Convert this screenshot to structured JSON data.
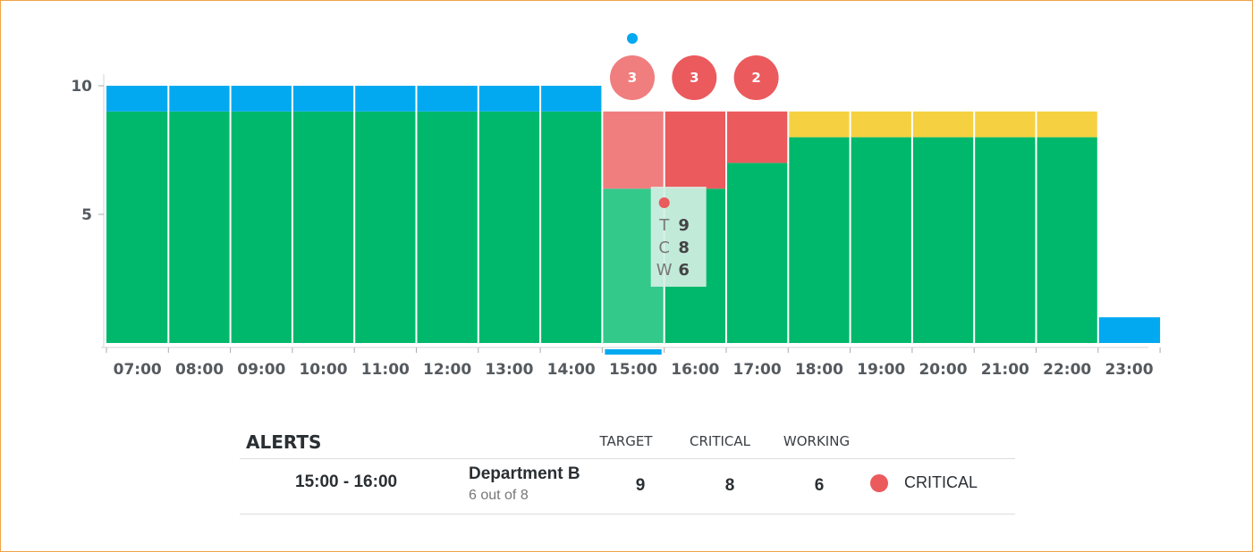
{
  "chart_data": {
    "type": "bar",
    "stacked": true,
    "categories": [
      "07:00",
      "08:00",
      "09:00",
      "10:00",
      "11:00",
      "12:00",
      "13:00",
      "14:00",
      "15:00",
      "16:00",
      "17:00",
      "18:00",
      "19:00",
      "20:00",
      "21:00",
      "22:00",
      "23:00"
    ],
    "series": [
      {
        "color": "#00b86b",
        "values": [
          9,
          9,
          9,
          9,
          9,
          9,
          9,
          9,
          6,
          6,
          7,
          8,
          8,
          8,
          8,
          8,
          0
        ]
      },
      {
        "color": "#f07e7e",
        "values": [
          0,
          0,
          0,
          0,
          0,
          0,
          0,
          0,
          3,
          0,
          0,
          0,
          0,
          0,
          0,
          0,
          0
        ]
      },
      {
        "color": "#eb5a5d",
        "values": [
          0,
          0,
          0,
          0,
          0,
          0,
          0,
          0,
          0,
          3,
          2,
          0,
          0,
          0,
          0,
          0,
          0
        ]
      },
      {
        "color": "#f5d142",
        "values": [
          0,
          0,
          0,
          0,
          0,
          0,
          0,
          0,
          0,
          0,
          0,
          1,
          1,
          1,
          1,
          1,
          0
        ]
      },
      {
        "color": "#03a9f0",
        "values": [
          1,
          1,
          1,
          1,
          1,
          1,
          1,
          1,
          0,
          0,
          0,
          0,
          0,
          0,
          0,
          0,
          1
        ]
      }
    ],
    "yticks": [
      5,
      10
    ],
    "ylim": [
      0,
      10.4
    ],
    "xlabel": "",
    "ylabel": "",
    "selected_category": "15:00",
    "bubbles": [
      {
        "category": "15:00",
        "label": "3",
        "color": "#f07e7e"
      },
      {
        "category": "16:00",
        "label": "3",
        "color": "#eb5a5d"
      },
      {
        "category": "17:00",
        "label": "2",
        "color": "#eb5a5d"
      }
    ],
    "marker_dot": {
      "category": "15:00",
      "color": "#03a9f0"
    },
    "tooltip": {
      "category": "15:00",
      "dot_color": "#eb5a5d",
      "rows": [
        {
          "key": "T",
          "value": "9"
        },
        {
          "key": "C",
          "value": "8"
        },
        {
          "key": "W",
          "value": "6"
        }
      ]
    }
  },
  "alerts": {
    "title": "ALERTS",
    "columns": {
      "target": "TARGET",
      "critical": "CRITICAL",
      "working": "WORKING"
    },
    "rows": [
      {
        "time_range": "15:00 - 16:00",
        "department": "Department B",
        "subtitle": "6 out of 8",
        "target": "9",
        "critical": "8",
        "working": "6",
        "status": "CRITICAL",
        "status_color": "#eb5a5d"
      }
    ]
  }
}
